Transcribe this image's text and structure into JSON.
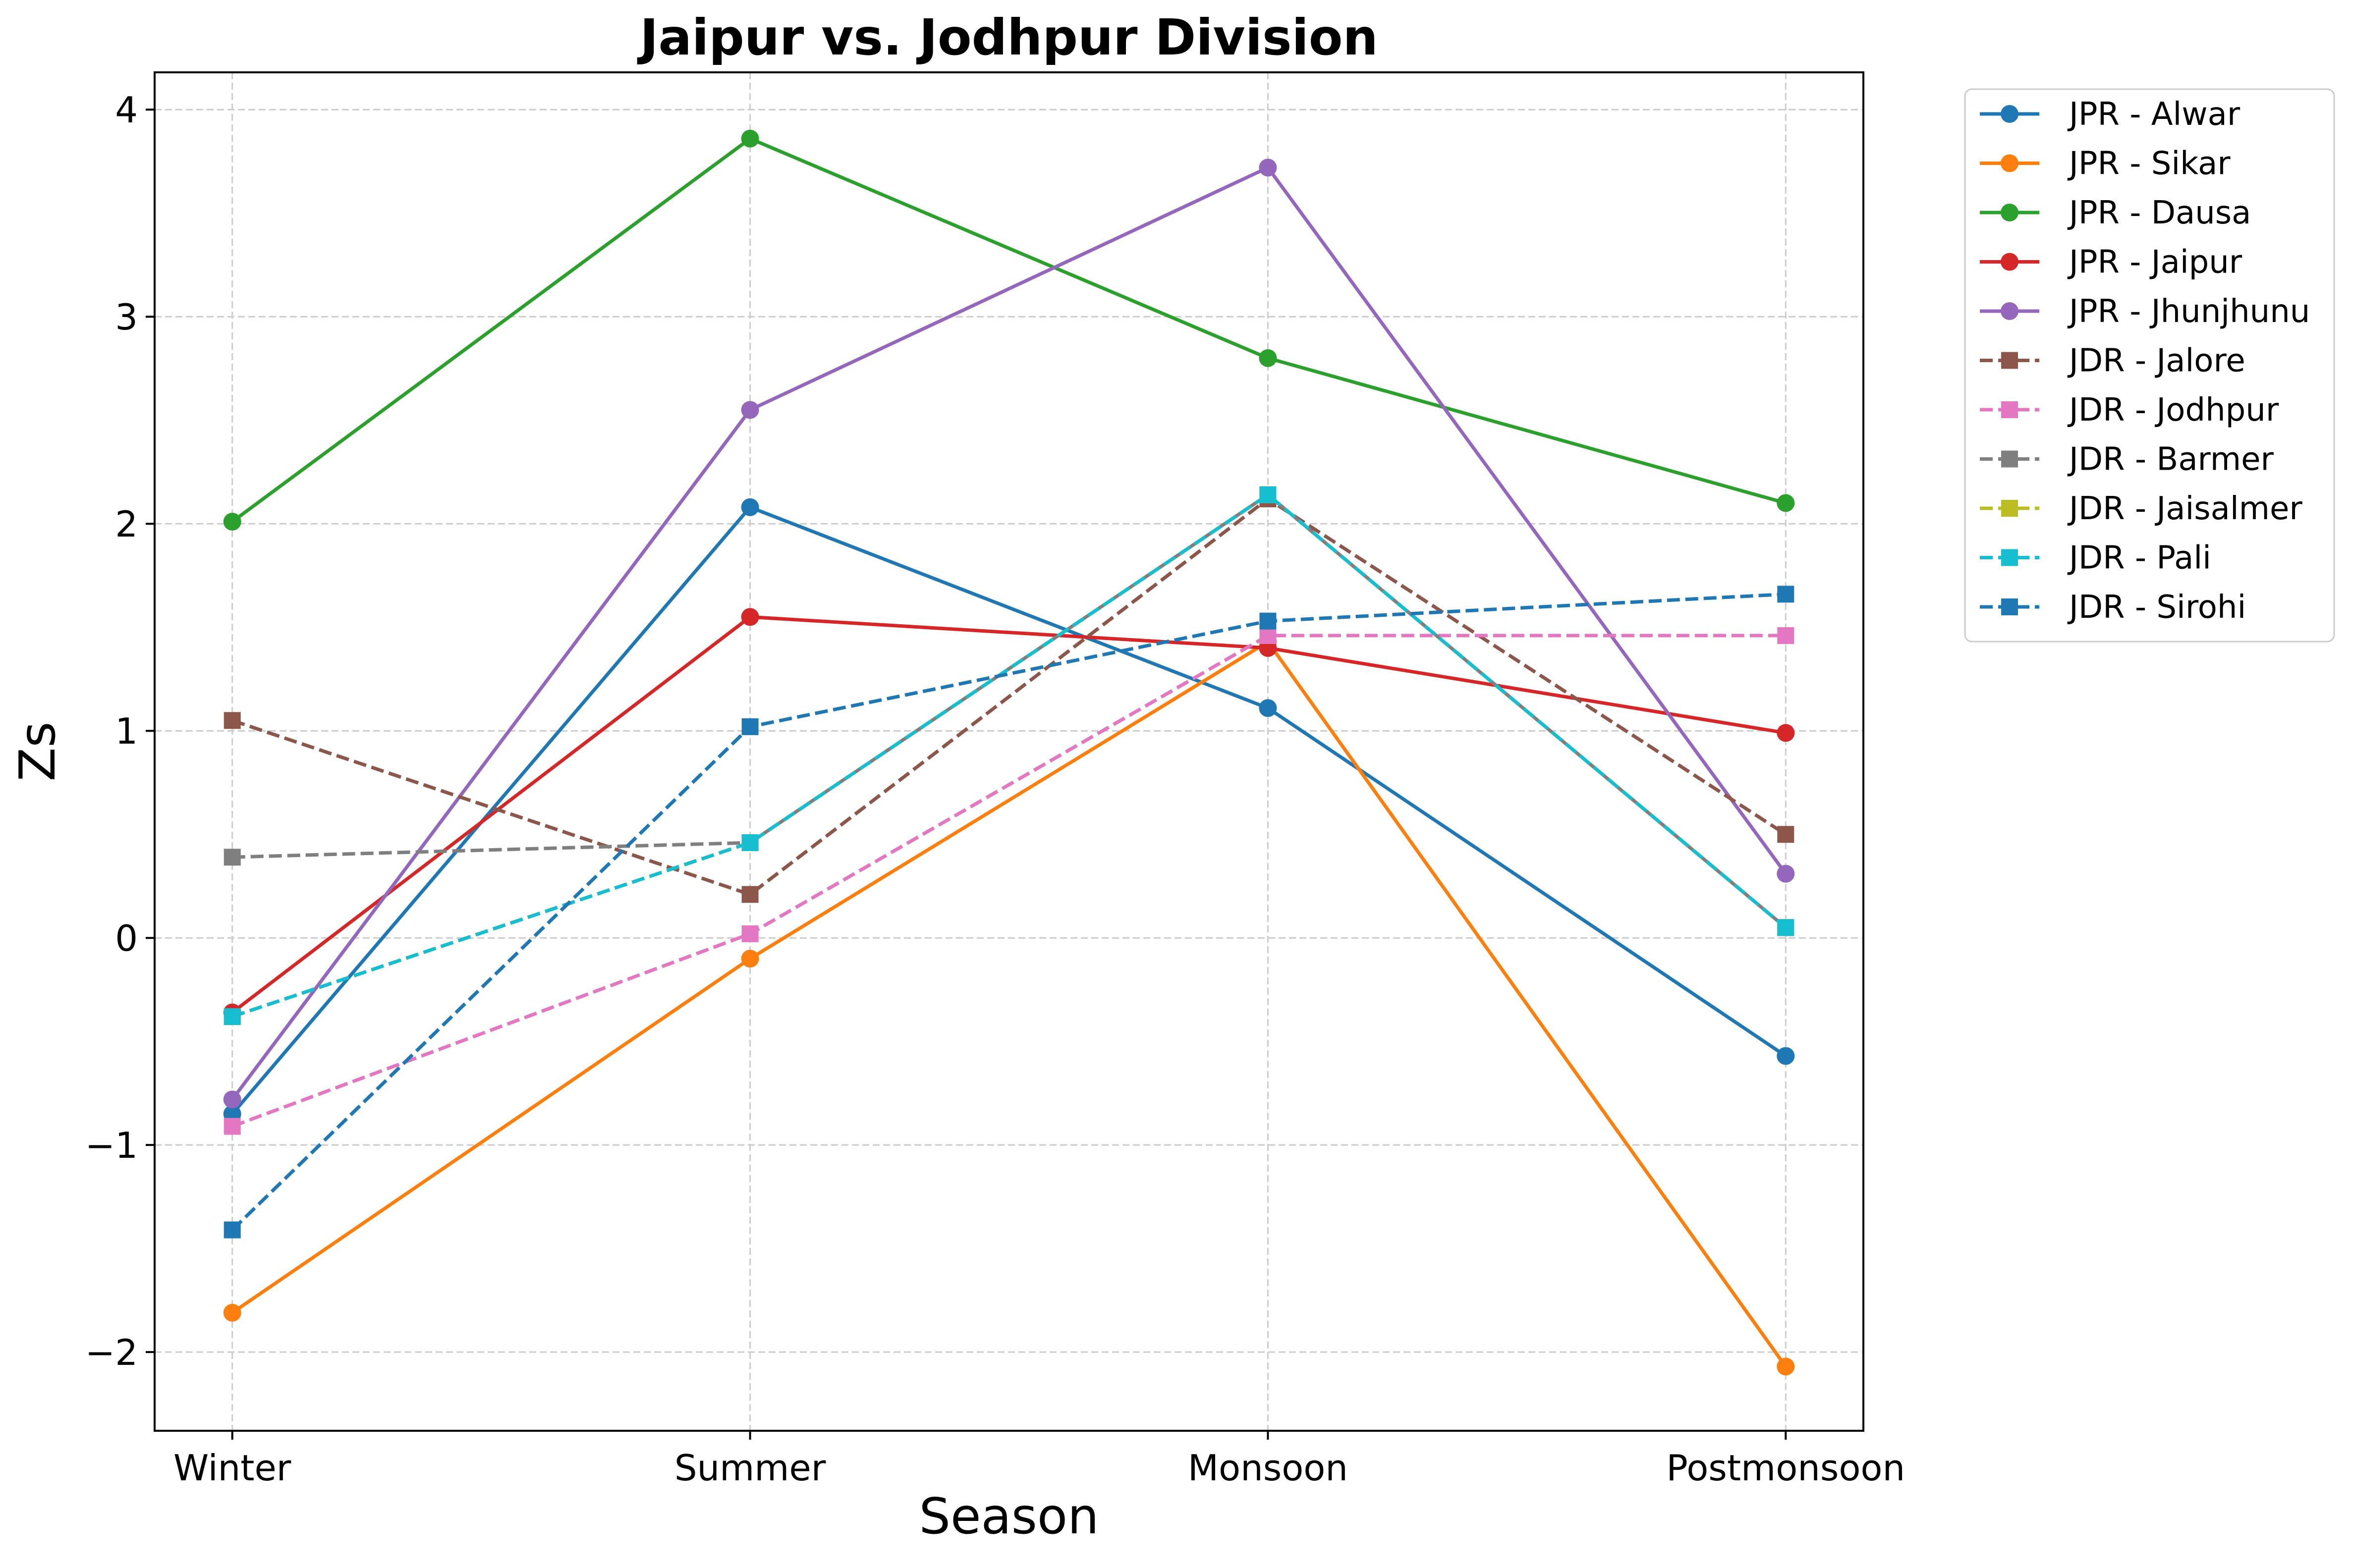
{
  "chart_data": {
    "type": "line",
    "title": "Jaipur vs. Jodhpur Division",
    "xlabel": "Season",
    "ylabel": "Zs",
    "categories": [
      "Winter",
      "Summer",
      "Monsoon",
      "Postmonsoon"
    ],
    "ylim": [
      -2.38,
      4.18
    ],
    "yticks": [
      -2,
      -1,
      0,
      1,
      2,
      3,
      4
    ],
    "ytick_labels": [
      "−2",
      "−1",
      "0",
      "1",
      "2",
      "3",
      "4"
    ],
    "grid": true,
    "legend_position": "outside-right-top",
    "series": [
      {
        "name": "JPR - Alwar",
        "color": "#1f77b4",
        "linestyle": "solid",
        "marker": "circle",
        "values": [
          -0.85,
          2.08,
          1.11,
          -0.57
        ]
      },
      {
        "name": "JPR - Sikar",
        "color": "#ff7f0e",
        "linestyle": "solid",
        "marker": "circle",
        "values": [
          -1.81,
          -0.1,
          1.43,
          -2.07
        ]
      },
      {
        "name": "JPR - Dausa",
        "color": "#2ca02c",
        "linestyle": "solid",
        "marker": "circle",
        "values": [
          2.01,
          3.86,
          2.8,
          2.1
        ]
      },
      {
        "name": "JPR - Jaipur",
        "color": "#d62728",
        "linestyle": "solid",
        "marker": "circle",
        "values": [
          -0.36,
          1.55,
          1.4,
          0.99
        ]
      },
      {
        "name": "JPR - Jhunjhunu",
        "color": "#9467bd",
        "linestyle": "solid",
        "marker": "circle",
        "values": [
          -0.78,
          2.55,
          3.72,
          0.31
        ]
      },
      {
        "name": "JDR - Jalore",
        "color": "#8c564b",
        "linestyle": "dashed",
        "marker": "square",
        "values": [
          1.05,
          0.21,
          2.12,
          0.5
        ]
      },
      {
        "name": "JDR - Jodhpur",
        "color": "#e377c2",
        "linestyle": "dashed",
        "marker": "square",
        "values": [
          -0.91,
          0.02,
          1.46,
          1.46
        ]
      },
      {
        "name": "JDR - Barmer",
        "color": "#7f7f7f",
        "linestyle": "dashed",
        "marker": "square",
        "values": [
          0.39,
          0.46,
          2.14,
          0.05
        ]
      },
      {
        "name": "JDR - Jaisalmer",
        "color": "#bcbd22",
        "linestyle": "dashed",
        "marker": "square",
        "values": [
          -0.38,
          0.46,
          2.14,
          0.05
        ]
      },
      {
        "name": "JDR - Pali",
        "color": "#17becf",
        "linestyle": "dashed",
        "marker": "square",
        "values": [
          -0.38,
          0.46,
          2.14,
          0.05
        ]
      },
      {
        "name": "JDR - Sirohi",
        "color": "#1f77b4",
        "linestyle": "dashed",
        "marker": "square",
        "values": [
          -1.41,
          1.02,
          1.53,
          1.66
        ]
      }
    ]
  }
}
